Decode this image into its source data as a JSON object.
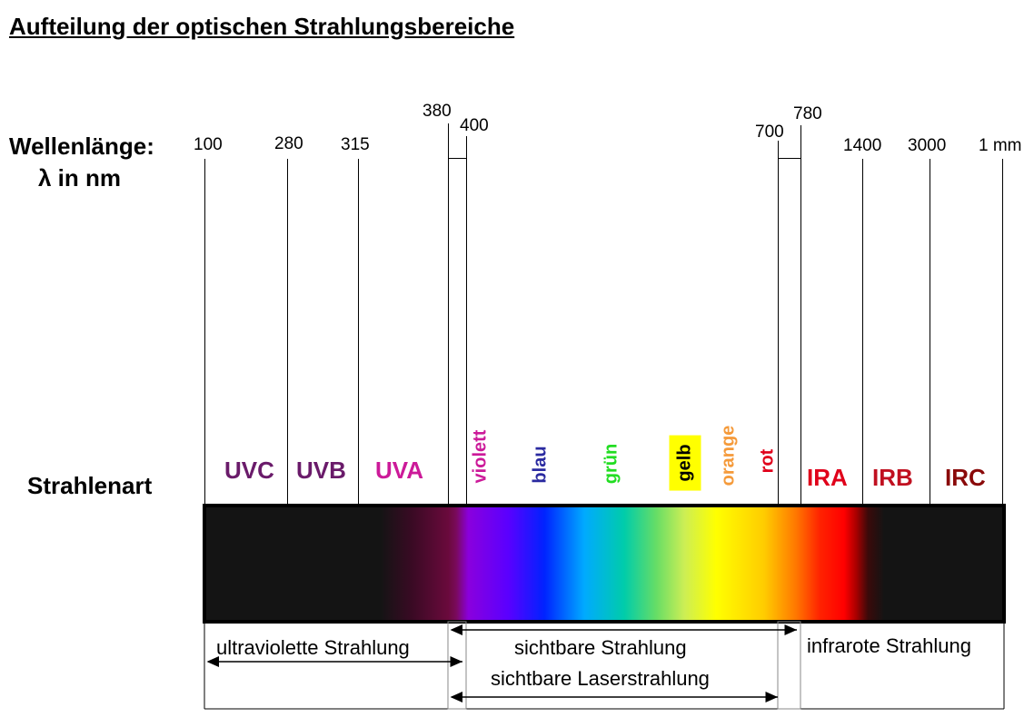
{
  "title": "Aufteilung der optischen Strahlungsbereiche",
  "axis": {
    "wavelength_label_line1": "Wellenlänge:",
    "wavelength_label_line2": "λ in nm",
    "radiation_type_label": "Strahlenart"
  },
  "ticks": {
    "t100": "100",
    "t280": "280",
    "t315": "315",
    "t380": "380",
    "t400": "400",
    "t700": "700",
    "t780": "780",
    "t1400": "1400",
    "t3000": "3000",
    "t1mm": "1 mm"
  },
  "bands": {
    "uvc": "UVC",
    "uvb": "UVB",
    "uva": "UVA",
    "ira": "IRA",
    "irb": "IRB",
    "irc": "IRC"
  },
  "colors": {
    "violett": "violett",
    "blau": "blau",
    "gruen": "grün",
    "gelb": "gelb",
    "orange": "orange",
    "rot": "rot"
  },
  "label_colors": {
    "uvc": "#6a1b6a",
    "uvb": "#6a1b6a",
    "uva": "#cc1a99",
    "violett": "#cc1a99",
    "blau": "#2a2aa0",
    "gruen": "#22dd22",
    "gelb": "#000000",
    "gelb_bg": "#ffff00",
    "orange": "#f59a3a",
    "rot": "#e0001a",
    "ira": "#e0001a",
    "irb": "#c01020",
    "irc": "#8a0a0a"
  },
  "ranges": {
    "ultraviolet": "ultraviolette Strahlung",
    "visible": "sichtbare Strahlung",
    "infrared": "infrarote Strahlung",
    "visible_laser": "sichtbare Laserstrahlung"
  }
}
